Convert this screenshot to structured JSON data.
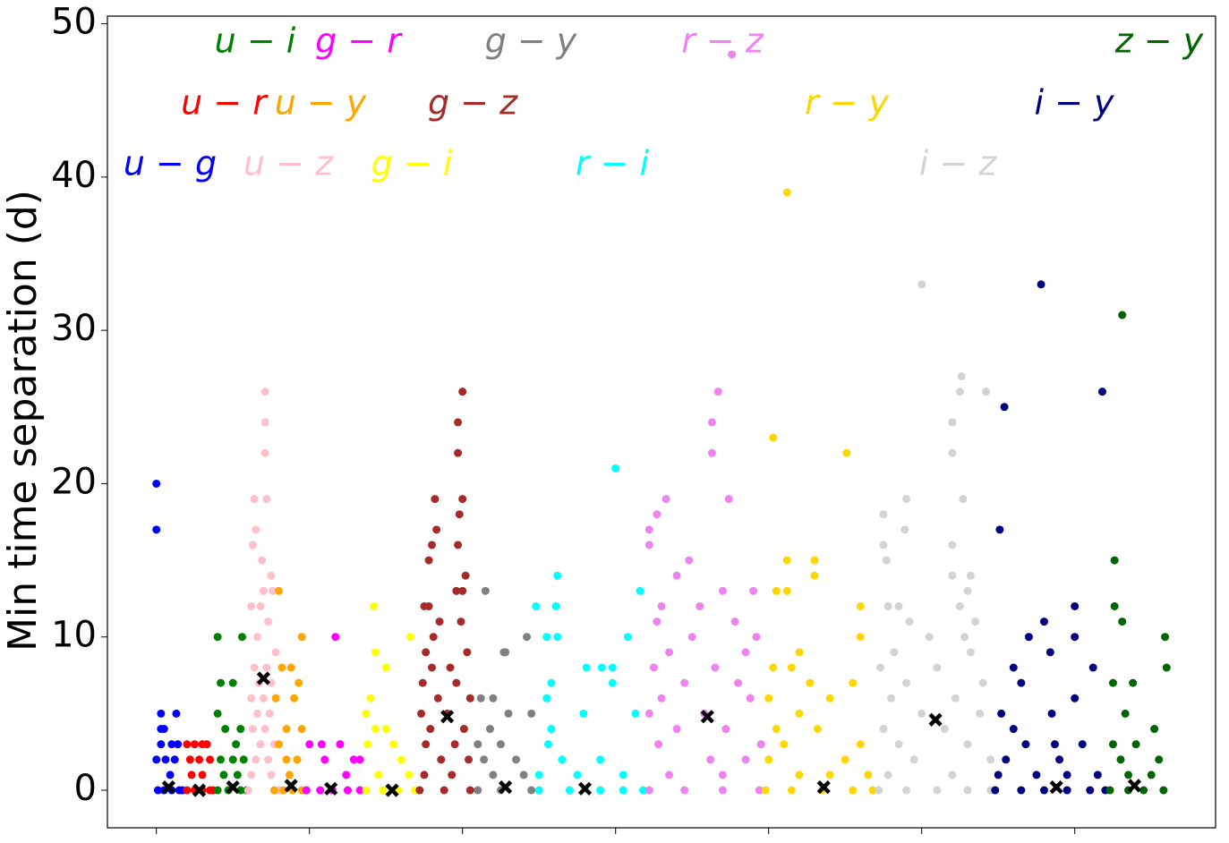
{
  "chart_data": {
    "type": "strip",
    "ylabel": "Min time separation (d)",
    "xlim": [
      -0.32,
      6.92
    ],
    "xticks": [
      0,
      1,
      2,
      3,
      4,
      5,
      6
    ],
    "ylim": [
      -2.45,
      50.5
    ],
    "yticks": [
      0,
      10,
      20,
      30,
      40,
      50
    ],
    "series": [
      {
        "name": "u − g",
        "color": "#0000ff",
        "median_x": 0.08,
        "median_y": 0.2,
        "x": [
          0.0,
          0.0,
          0.03,
          0.13,
          0.03,
          0.05,
          0.03,
          0.1,
          0.0,
          0.06,
          0.12,
          0.14,
          0.09,
          0.01,
          0.05,
          0.1,
          0.15,
          0.17
        ],
        "values": [
          20,
          17,
          5,
          5,
          4,
          4,
          3,
          3,
          2,
          2,
          2,
          3,
          1,
          0,
          0,
          0,
          0,
          0
        ]
      },
      {
        "name": "u − r",
        "color": "#ff0000",
        "median_x": 0.28,
        "median_y": 0,
        "x": [
          0.2,
          0.25,
          0.3,
          0.33,
          0.22,
          0.28,
          0.35,
          0.23,
          0.3,
          0.2,
          0.25,
          0.3,
          0.35,
          0.37
        ],
        "values": [
          3,
          3,
          3,
          3,
          2,
          2,
          2,
          1,
          1,
          0,
          0,
          0,
          0,
          0
        ]
      },
      {
        "name": "u − i",
        "color": "#008000",
        "median_x": 0.5,
        "median_y": 0.2,
        "x": [
          0.4,
          0.56,
          0.42,
          0.5,
          0.4,
          0.55,
          0.45,
          0.52,
          0.42,
          0.5,
          0.57,
          0.44,
          0.53,
          0.4,
          0.47,
          0.55,
          0.59
        ],
        "values": [
          10,
          10,
          7,
          7,
          5,
          4,
          4,
          3,
          2,
          2,
          2,
          1,
          1,
          0,
          0,
          0,
          0
        ]
      },
      {
        "name": "u − z",
        "color": "#ffc0cb",
        "median_x": 0.7,
        "median_y": 7.3,
        "x": [
          0.71,
          0.71,
          0.71,
          0.64,
          0.72,
          0.65,
          0.63,
          0.69,
          0.75,
          0.7,
          0.76,
          0.62,
          0.68,
          0.73,
          0.66,
          0.78,
          0.64,
          0.72,
          0.67,
          0.75,
          0.62,
          0.7,
          0.74,
          0.66,
          0.63,
          0.71,
          0.68,
          0.77,
          0.65,
          0.73,
          0.62,
          0.75,
          0.6,
          0.8
        ],
        "values": [
          26,
          24,
          22,
          19,
          19,
          17,
          16,
          15,
          14,
          13,
          13,
          12,
          12,
          11,
          10,
          9,
          8,
          8,
          7,
          7,
          6,
          6,
          5,
          5,
          4,
          4,
          3,
          3,
          2,
          2,
          1,
          1,
          0,
          0
        ]
      },
      {
        "name": "u − y",
        "color": "#ffa500",
        "median_x": 0.88,
        "median_y": 0.3,
        "x": [
          0.8,
          0.95,
          0.82,
          0.88,
          0.93,
          0.78,
          0.9,
          0.85,
          0.95,
          0.8,
          0.85,
          0.92,
          0.87,
          0.77,
          0.83,
          0.89,
          0.95
        ],
        "values": [
          13,
          10,
          8,
          8,
          7,
          6,
          6,
          4,
          4,
          3,
          2,
          2,
          1,
          0,
          0,
          0,
          0
        ]
      },
      {
        "name": "g − r",
        "color": "#ff00ff",
        "median_x": 1.14,
        "median_y": 0.1,
        "x": [
          1.17,
          1.0,
          1.08,
          1.2,
          1.1,
          1.29,
          1.33,
          1.24,
          0.98,
          1.07,
          1.15,
          1.25,
          1.33
        ],
        "values": [
          10,
          3,
          3,
          3,
          2,
          2,
          2,
          1,
          0,
          0,
          0,
          0,
          0
        ]
      },
      {
        "name": "g − i",
        "color": "#ffff00",
        "median_x": 1.54,
        "median_y": 0,
        "x": [
          1.42,
          1.66,
          1.43,
          1.5,
          1.4,
          1.37,
          1.43,
          1.5,
          1.38,
          1.55,
          1.6,
          1.45,
          1.65,
          1.37,
          1.48,
          1.58,
          1.69
        ],
        "values": [
          12,
          10,
          9,
          8,
          6,
          5,
          4,
          4,
          3,
          3,
          2,
          1,
          1,
          0,
          0,
          0,
          0
        ]
      },
      {
        "name": "g − z",
        "color": "#a52a2a",
        "median_x": 1.9,
        "median_y": 4.8,
        "x": [
          2.0,
          1.97,
          1.97,
          1.82,
          2.0,
          1.98,
          1.83,
          1.8,
          1.97,
          1.78,
          2.02,
          1.96,
          2.0,
          1.75,
          1.78,
          1.85,
          1.99,
          1.81,
          1.76,
          2.03,
          1.8,
          1.92,
          1.74,
          1.96,
          1.84,
          2.05,
          1.73,
          1.9,
          1.79,
          2.01,
          1.76,
          1.95,
          1.86,
          2.04,
          1.75,
          1.93,
          1.72,
          1.88,
          2.05
        ],
        "values": [
          26,
          24,
          22,
          19,
          19,
          18,
          17,
          16,
          16,
          15,
          14,
          13,
          13,
          12,
          12,
          11,
          11,
          10,
          9,
          9,
          8,
          8,
          7,
          7,
          6,
          6,
          5,
          5,
          4,
          4,
          3,
          3,
          2,
          2,
          1,
          1,
          0,
          0,
          0
        ]
      },
      {
        "name": "g − y",
        "color": "#808080",
        "median_x": 2.28,
        "median_y": 0.2,
        "x": [
          2.15,
          2.42,
          2.27,
          2.28,
          2.12,
          2.2,
          2.3,
          2.45,
          2.18,
          2.1,
          2.25,
          2.14,
          2.35,
          2.2,
          2.4,
          2.1,
          2.25,
          2.45
        ],
        "values": [
          13,
          10,
          9,
          9,
          6,
          6,
          5,
          5,
          4,
          3,
          3,
          2,
          2,
          1,
          1,
          0,
          0,
          0
        ]
      },
      {
        "name": "r − i",
        "color": "#00ffff",
        "median_x": 2.8,
        "median_y": 0.1,
        "x": [
          3.0,
          2.62,
          3.16,
          2.48,
          2.61,
          2.55,
          2.62,
          3.08,
          2.81,
          2.91,
          2.98,
          2.98,
          2.58,
          2.55,
          2.79,
          3.13,
          2.58,
          2.56,
          2.65,
          2.9,
          2.5,
          2.75,
          3.05,
          2.5,
          2.7,
          2.9,
          3.05,
          3.18
        ],
        "values": [
          21,
          14,
          13,
          12,
          12,
          10,
          10,
          10,
          8,
          8,
          8,
          7,
          7,
          6,
          5,
          5,
          4,
          3,
          2,
          2,
          1,
          1,
          1,
          0,
          0,
          0,
          0,
          0
        ]
      },
      {
        "name": "r − z",
        "color": "#ee82ee",
        "median_x": 3.6,
        "median_y": 4.8,
        "x": [
          3.76,
          3.67,
          3.63,
          3.63,
          3.33,
          3.74,
          3.27,
          3.22,
          3.22,
          3.48,
          3.4,
          3.7,
          3.9,
          3.3,
          3.55,
          3.27,
          3.78,
          3.5,
          3.92,
          3.35,
          3.85,
          3.25,
          3.65,
          3.45,
          3.8,
          3.3,
          3.88,
          3.58,
          3.22,
          3.72,
          3.4,
          3.95,
          3.28,
          3.62,
          3.85,
          3.35,
          3.7,
          3.22,
          3.45,
          3.7,
          3.94
        ],
        "values": [
          48,
          26,
          24,
          22,
          19,
          19,
          18,
          17,
          16,
          15,
          14,
          13,
          13,
          12,
          12,
          11,
          11,
          10,
          10,
          9,
          9,
          8,
          8,
          7,
          7,
          6,
          6,
          5,
          5,
          4,
          4,
          3,
          3,
          2,
          2,
          1,
          1,
          0,
          0,
          0,
          0
        ]
      },
      {
        "name": "r − y",
        "color": "#ffd700",
        "median_x": 4.36,
        "median_y": 0.2,
        "x": [
          4.12,
          4.03,
          4.51,
          4.12,
          4.3,
          4.3,
          4.05,
          4.12,
          4.6,
          4.6,
          4.2,
          4.03,
          4.15,
          4.27,
          4.55,
          4.0,
          4.4,
          4.2,
          4.05,
          4.32,
          4.1,
          4.6,
          4.0,
          4.5,
          4.2,
          4.4,
          4.65,
          3.98,
          4.15,
          4.35,
          4.55,
          4.68
        ],
        "values": [
          39,
          23,
          22,
          15,
          15,
          14,
          13,
          13,
          12,
          10,
          9,
          8,
          8,
          7,
          7,
          6,
          6,
          5,
          4,
          4,
          3,
          3,
          2,
          2,
          1,
          1,
          1,
          0,
          0,
          0,
          0,
          0
        ]
      },
      {
        "name": "i − z",
        "color": "#d3d3d3",
        "median_x": 5.09,
        "median_y": 4.6,
        "x": [
          5.0,
          5.26,
          5.25,
          5.42,
          5.2,
          5.2,
          5.2,
          5.27,
          4.9,
          4.75,
          4.89,
          4.75,
          5.2,
          4.77,
          5.2,
          5.32,
          5.3,
          4.78,
          4.85,
          5.25,
          4.92,
          5.35,
          5.05,
          5.28,
          4.82,
          5.32,
          4.73,
          5.1,
          4.9,
          5.4,
          4.8,
          5.22,
          5.0,
          5.38,
          4.75,
          5.15,
          4.85,
          5.3,
          4.95,
          5.45,
          4.78,
          5.2,
          4.72,
          4.9,
          5.1,
          5.3,
          5.45
        ],
        "values": [
          33,
          27,
          26,
          26,
          24,
          24,
          22,
          19,
          19,
          18,
          17,
          16,
          16,
          15,
          14,
          14,
          13,
          12,
          12,
          12,
          11,
          11,
          10,
          10,
          9,
          9,
          8,
          8,
          7,
          7,
          6,
          6,
          5,
          5,
          4,
          4,
          3,
          3,
          2,
          2,
          1,
          1,
          0,
          0,
          0,
          0,
          0
        ]
      },
      {
        "name": "i − y",
        "color": "#000080",
        "median_x": 5.88,
        "median_y": 0.2,
        "x": [
          5.78,
          6.18,
          5.54,
          5.51,
          6.0,
          5.8,
          5.7,
          6.0,
          5.84,
          5.6,
          6.12,
          5.65,
          6.0,
          5.52,
          5.85,
          5.6,
          5.68,
          5.87,
          6.05,
          5.55,
          5.9,
          5.5,
          5.75,
          5.95,
          6.15,
          5.48,
          5.65,
          5.8,
          5.95,
          6.1,
          6.2
        ],
        "values": [
          33,
          26,
          25,
          17,
          12,
          11,
          10,
          10,
          9,
          8,
          8,
          7,
          6,
          5,
          5,
          4,
          3,
          3,
          3,
          2,
          2,
          1,
          1,
          1,
          1,
          0,
          0,
          0,
          0,
          0,
          0
        ]
      },
      {
        "name": "z − y",
        "color": "#006400",
        "median_x": 6.39,
        "median_y": 0.3,
        "x": [
          6.31,
          6.26,
          6.26,
          6.31,
          6.59,
          6.6,
          6.25,
          6.38,
          6.33,
          6.52,
          6.25,
          6.4,
          6.3,
          6.55,
          6.35,
          6.5,
          6.23,
          6.35,
          6.45,
          6.58
        ],
        "values": [
          31,
          15,
          12,
          11,
          10,
          8,
          7,
          7,
          5,
          4,
          3,
          3,
          2,
          2,
          1,
          1,
          0,
          0,
          0,
          0
        ]
      }
    ]
  }
}
